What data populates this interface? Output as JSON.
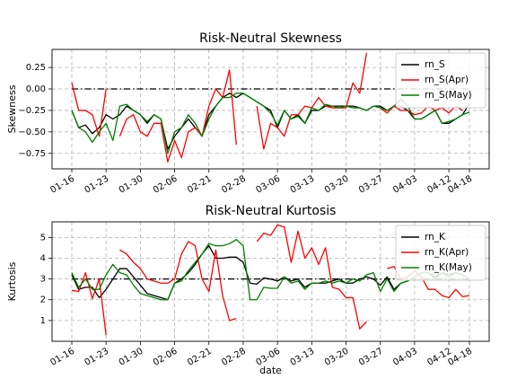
{
  "chart_data": [
    {
      "type": "line",
      "title": "Risk-Neutral Skewness",
      "y_label": "Skewness",
      "categories": [
        "01-16",
        null,
        null,
        null,
        null,
        "01-23",
        null,
        null,
        null,
        null,
        "01-30",
        null,
        null,
        null,
        null,
        "02-06",
        null,
        null,
        null,
        null,
        "02-21",
        null,
        null,
        null,
        null,
        "02-28",
        null,
        null,
        null,
        null,
        "03-06",
        null,
        null,
        null,
        null,
        "03-13",
        null,
        null,
        null,
        null,
        "03-20",
        null,
        null,
        null,
        null,
        "03-27",
        null,
        null,
        null,
        null,
        "04-03",
        null,
        null,
        null,
        null,
        "04-12",
        null,
        null,
        "04-18"
      ],
      "series": [
        {
          "name": "rn_S",
          "color": "#000000",
          "values": [
            -0.25,
            -0.45,
            -0.42,
            -0.52,
            -0.45,
            -0.3,
            -0.35,
            -0.3,
            -0.2,
            -0.25,
            -0.3,
            -0.4,
            -0.3,
            -0.35,
            -0.7,
            -0.55,
            -0.45,
            -0.35,
            -0.45,
            -0.55,
            -0.3,
            -0.2,
            -0.1,
            -0.05,
            -0.1,
            -0.05,
            -0.1,
            -0.15,
            -0.2,
            -0.25,
            -0.45,
            -0.25,
            -0.35,
            -0.3,
            -0.4,
            -0.25,
            -0.25,
            -0.2,
            -0.2,
            -0.2,
            -0.2,
            -0.2,
            -0.22,
            -0.25,
            -0.2,
            -0.2,
            -0.25,
            -0.2,
            -0.2,
            -0.25,
            -0.35,
            -0.35,
            -0.3,
            -0.25,
            -0.4,
            -0.4,
            -0.35,
            -0.3,
            -0.17
          ]
        },
        {
          "name": "rn_S(Apr)",
          "color": "#ff0000",
          "values": [
            0.07,
            -0.25,
            -0.25,
            -0.3,
            -0.55,
            0,
            null,
            -0.55,
            -0.35,
            -0.3,
            -0.5,
            -0.55,
            -0.4,
            -0.4,
            -0.85,
            -0.6,
            -0.8,
            -0.5,
            -0.45,
            -0.55,
            -0.2,
            0,
            -0.1,
            0.22,
            -0.65,
            null,
            null,
            -0.2,
            -0.7,
            -0.4,
            -0.45,
            -0.55,
            -0.3,
            -0.3,
            -0.2,
            -0.22,
            -0.1,
            -0.2,
            -0.22,
            -0.22,
            -0.22,
            0.07,
            -0.05,
            0.42,
            null,
            -0.22,
            -0.28,
            -0.2,
            -0.25,
            -0.25,
            -0.3,
            -0.28,
            -0.2,
            -0.25,
            -0.22,
            -0.28,
            -0.2,
            -0.25,
            null
          ]
        },
        {
          "name": "rn_S(May)",
          "color": "#008000",
          "values": [
            -0.25,
            -0.45,
            -0.5,
            -0.62,
            -0.5,
            -0.4,
            -0.6,
            -0.2,
            -0.18,
            -0.25,
            -0.3,
            -0.38,
            -0.3,
            -0.35,
            -0.75,
            -0.5,
            -0.45,
            -0.3,
            -0.4,
            -0.55,
            -0.35,
            -0.2,
            -0.1,
            -0.1,
            -0.05,
            -0.05,
            -0.1,
            -0.15,
            -0.2,
            -0.28,
            -0.42,
            -0.25,
            -0.35,
            -0.32,
            -0.4,
            -0.22,
            -0.25,
            -0.18,
            -0.2,
            -0.22,
            -0.2,
            -0.22,
            -0.22,
            -0.25,
            -0.2,
            -0.22,
            -0.25,
            -0.2,
            -0.12,
            -0.2,
            -0.35,
            -0.35,
            -0.3,
            -0.25,
            -0.4,
            -0.38,
            -0.35,
            -0.3,
            -0.27
          ]
        }
      ],
      "ylim": [
        -0.93,
        0.46
      ],
      "yticks": [
        {
          "value": -0.75,
          "label": "−0.75"
        },
        {
          "value": -0.5,
          "label": "−0.50"
        },
        {
          "value": -0.25,
          "label": "−0.25"
        },
        {
          "value": 0,
          "label": "0.00"
        },
        0.25
      ],
      "hline": 0,
      "grid": true,
      "legend": "upper right"
    },
    {
      "type": "line",
      "title": "Risk-Neutral Kurtosis",
      "y_label": "Kurtosis",
      "x_label": "date",
      "categories": [
        "01-16",
        null,
        null,
        null,
        null,
        "01-23",
        null,
        null,
        null,
        null,
        "01-30",
        null,
        null,
        null,
        null,
        "02-06",
        null,
        null,
        null,
        null,
        "02-21",
        null,
        null,
        null,
        null,
        "02-28",
        null,
        null,
        null,
        null,
        "03-06",
        null,
        null,
        null,
        null,
        "03-13",
        null,
        null,
        null,
        null,
        "03-20",
        null,
        null,
        null,
        null,
        "03-27",
        null,
        null,
        null,
        null,
        "04-03",
        null,
        null,
        null,
        null,
        "04-12",
        null,
        null,
        "04-18"
      ],
      "series": [
        {
          "name": "rn_K",
          "color": "#000000",
          "values": [
            3.2,
            2.5,
            2.6,
            2.6,
            2.1,
            2.5,
            3.0,
            3.5,
            3.5,
            3.1,
            2.7,
            2.3,
            2.2,
            2.1,
            2.0,
            2.8,
            3.0,
            3.3,
            3.7,
            4.2,
            4.6,
            4.0,
            4.0,
            4.05,
            4.05,
            3.8,
            2.8,
            2.75,
            3.05,
            3.0,
            2.9,
            3.1,
            2.9,
            3.0,
            2.6,
            2.8,
            2.8,
            2.8,
            2.9,
            3.0,
            2.8,
            2.8,
            3.0,
            3.1,
            3.0,
            2.7,
            3.1,
            2.5,
            2.8,
            2.9,
            3.1,
            3.3,
            3.3,
            3.1,
            3.3,
            3.2,
            3.3,
            3.2,
            3.0
          ]
        },
        {
          "name": "rn_K(Apr)",
          "color": "#ff0000",
          "values": [
            2.45,
            2.4,
            3.3,
            2.05,
            3.0,
            0.3,
            null,
            4.4,
            4.2,
            3.8,
            3.5,
            3.0,
            2.9,
            2.8,
            2.8,
            3.0,
            4.2,
            4.8,
            4.6,
            3.0,
            2.4,
            4.4,
            2.2,
            1.0,
            1.1,
            null,
            null,
            4.8,
            5.2,
            5.1,
            5.6,
            5.5,
            3.8,
            5.3,
            4.0,
            4.5,
            3.7,
            4.5,
            2.6,
            2.5,
            2.1,
            2.1,
            0.6,
            0.95,
            null,
            null,
            3.5,
            3.6,
            3.0,
            3.1,
            3.4,
            3.1,
            2.5,
            2.5,
            2.2,
            2.1,
            2.5,
            2.15,
            2.2
          ]
        },
        {
          "name": "rn_K(May)",
          "color": "#008000",
          "values": [
            3.3,
            2.6,
            3.0,
            2.5,
            2.5,
            3.2,
            3.7,
            3.3,
            3.2,
            2.7,
            2.3,
            2.2,
            2.1,
            2.0,
            2.0,
            2.8,
            2.9,
            3.4,
            3.8,
            4.2,
            4.7,
            4.6,
            4.6,
            4.7,
            4.9,
            4.6,
            2.0,
            2.0,
            2.6,
            2.55,
            2.55,
            3.1,
            2.8,
            2.9,
            2.5,
            2.8,
            2.8,
            2.9,
            2.8,
            2.9,
            2.8,
            3.0,
            2.9,
            3.2,
            3.3,
            2.4,
            3.0,
            2.4,
            2.8,
            2.9,
            3.1,
            3.3,
            3.3,
            3.0,
            3.3,
            3.1,
            3.3,
            3.2,
            3.0
          ]
        }
      ],
      "ylim": [
        0,
        5.75
      ],
      "yticks": [
        1,
        2,
        3,
        4,
        5
      ],
      "hline": 3,
      "grid": true,
      "legend": "upper right"
    }
  ]
}
